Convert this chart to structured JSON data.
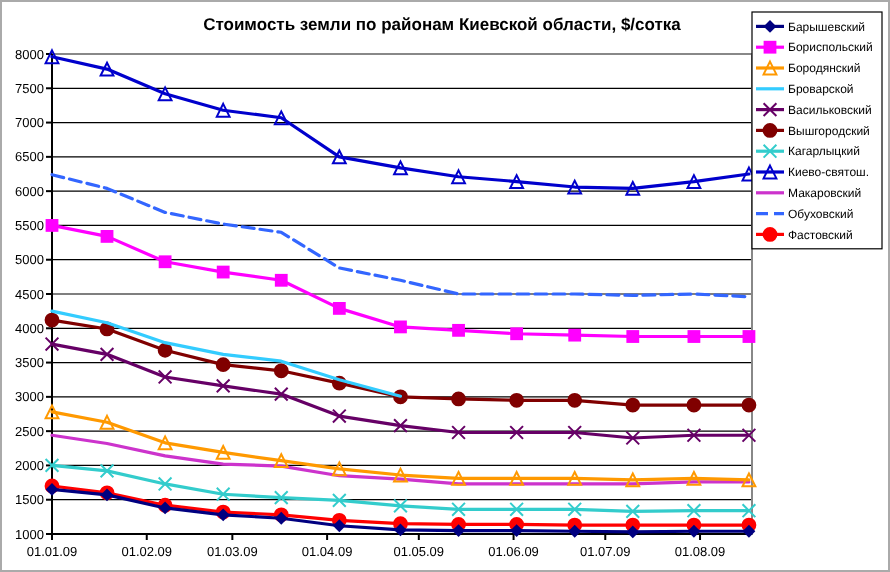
{
  "chart_data": {
    "type": "line",
    "title": "Стоимость земли по районам Киевской области, $/сотка",
    "x": [
      "2009-01-01",
      "2009-01-19",
      "2009-02-07",
      "2009-02-26",
      "2009-03-17",
      "2009-04-05",
      "2009-04-25",
      "2009-05-14",
      "2009-06-02",
      "2009-06-21",
      "2009-07-10",
      "2009-07-30",
      "2009-08-17"
    ],
    "xlim": [
      "2009-01-01",
      "2009-08-18"
    ],
    "xticks": [
      {
        "value": "2009-01-01",
        "label": "01.01.09"
      },
      {
        "value": "2009-02-01",
        "label": "01.02.09"
      },
      {
        "value": "2009-03-01",
        "label": "01.03.09"
      },
      {
        "value": "2009-04-01",
        "label": "01.04.09"
      },
      {
        "value": "2009-05-01",
        "label": "01.05.09"
      },
      {
        "value": "2009-06-01",
        "label": "01.06.09"
      },
      {
        "value": "2009-07-01",
        "label": "01.07.09"
      },
      {
        "value": "2009-08-01",
        "label": "01.08.09"
      }
    ],
    "ylim": [
      1000,
      8000
    ],
    "yticks": [
      1000,
      1500,
      2000,
      2500,
      3000,
      3500,
      4000,
      4500,
      5000,
      5500,
      6000,
      6500,
      7000,
      7500,
      8000
    ],
    "grid": "y",
    "legend": "right",
    "line_style": "solid",
    "series": [
      {
        "name": "Барышевский",
        "color": "#000080",
        "marker": "diamond",
        "values": [
          1650,
          1570,
          1380,
          1280,
          1230,
          1120,
          1060,
          1050,
          1050,
          1040,
          1030,
          1040,
          1040
        ]
      },
      {
        "name": "Бориспольский",
        "color": "#ff00ff",
        "marker": "square",
        "values": [
          5500,
          5340,
          4970,
          4820,
          4700,
          4290,
          4020,
          3970,
          3920,
          3900,
          3880,
          3880,
          3880
        ]
      },
      {
        "name": "Бородянский",
        "color": "#ff9900",
        "marker": "triangle",
        "values": [
          2780,
          2630,
          2330,
          2190,
          2070,
          1950,
          1860,
          1810,
          1810,
          1810,
          1790,
          1810,
          1790
        ]
      },
      {
        "name": "Броварской",
        "color": "#33ccff",
        "marker": "none",
        "values": [
          4250,
          4080,
          3790,
          3620,
          3520,
          3250,
          3010,
          null,
          null,
          null,
          null,
          null,
          null
        ]
      },
      {
        "name": "Васильковский",
        "color": "#660066",
        "marker": "cross",
        "values": [
          3770,
          3620,
          3290,
          3160,
          3040,
          2720,
          2580,
          2480,
          2480,
          2480,
          2400,
          2440,
          2440
        ]
      },
      {
        "name": "Вышгородский",
        "color": "#800000",
        "marker": "circle",
        "values": [
          4120,
          3990,
          3680,
          3470,
          3380,
          3200,
          3000,
          2970,
          2950,
          2950,
          2880,
          2880,
          2880
        ]
      },
      {
        "name": "Кагарлыцкий",
        "color": "#33cccc",
        "marker": "cross",
        "values": [
          2000,
          1920,
          1730,
          1580,
          1530,
          1490,
          1410,
          1360,
          1360,
          1360,
          1330,
          1340,
          1340
        ]
      },
      {
        "name": "Киево-святош.",
        "color": "#0000cc",
        "marker": "triangle",
        "values": [
          7960,
          7780,
          7420,
          7180,
          7070,
          6500,
          6340,
          6210,
          6140,
          6060,
          6040,
          6140,
          6250
        ]
      },
      {
        "name": "Макаровский",
        "color": "#cc33cc",
        "marker": "none",
        "values": [
          2440,
          2320,
          2140,
          2020,
          1990,
          1850,
          1800,
          1730,
          1730,
          1730,
          1730,
          1760,
          1760
        ]
      },
      {
        "name": "Обуховский",
        "color": "#3366ff",
        "marker": "none",
        "line_style": "dashed",
        "values": [
          6240,
          6040,
          5690,
          5520,
          5400,
          4880,
          4700,
          4500,
          4500,
          4500,
          4480,
          4500,
          4460
        ]
      },
      {
        "name": "Фастовский",
        "color": "#ff0000",
        "marker": "circle",
        "values": [
          1700,
          1600,
          1420,
          1320,
          1280,
          1200,
          1150,
          1140,
          1140,
          1130,
          1130,
          1130,
          1130
        ]
      }
    ]
  }
}
